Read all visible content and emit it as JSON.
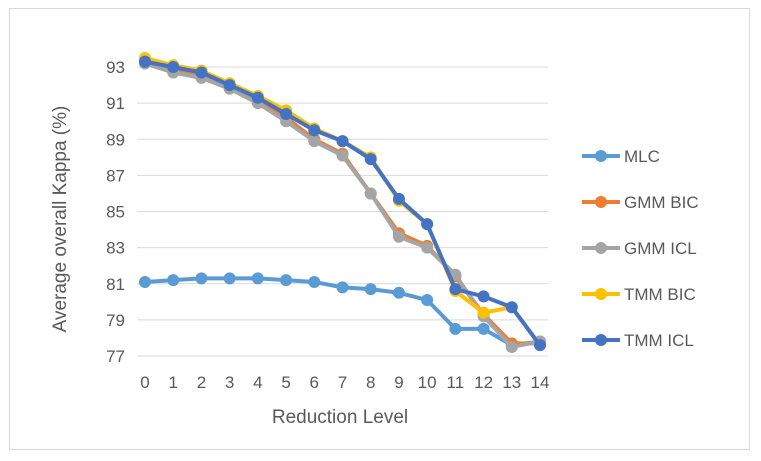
{
  "chart_data": {
    "type": "line",
    "title": "",
    "xlabel": "Reduction Level",
    "ylabel": "Average overall Kappa (%)",
    "x": [
      0,
      1,
      2,
      3,
      4,
      5,
      6,
      7,
      8,
      9,
      10,
      11,
      12,
      13,
      14
    ],
    "ylim": [
      77,
      94
    ],
    "yticks": [
      77,
      79,
      81,
      83,
      85,
      87,
      89,
      91,
      93
    ],
    "grid": "horizontal",
    "legend_position": "right",
    "series": [
      {
        "name": "MLC",
        "color": "#5b9bd5",
        "values": [
          81.1,
          81.2,
          81.3,
          81.3,
          81.3,
          81.2,
          81.1,
          80.8,
          80.7,
          80.5,
          80.1,
          78.5,
          78.5,
          77.6,
          77.8
        ]
      },
      {
        "name": "GMM BIC",
        "color": "#ed7d31",
        "values": [
          93.3,
          92.8,
          92.5,
          92.0,
          91.2,
          90.2,
          89.0,
          88.2,
          86.0,
          83.8,
          83.1,
          81.4,
          79.3,
          77.7,
          77.7
        ]
      },
      {
        "name": "GMM ICL",
        "color": "#a5a5a5",
        "values": [
          93.2,
          92.7,
          92.4,
          91.8,
          91.0,
          90.0,
          88.9,
          88.1,
          86.0,
          83.6,
          83.0,
          81.5,
          79.2,
          77.5,
          77.8
        ]
      },
      {
        "name": "TMM BIC",
        "color": "#ffc000",
        "values": [
          93.5,
          93.1,
          92.8,
          92.1,
          91.4,
          90.6,
          89.6,
          88.9,
          88.0,
          85.6,
          84.3,
          80.6,
          79.4,
          79.7,
          77.6
        ]
      },
      {
        "name": "TMM ICL",
        "color": "#4472c4",
        "values": [
          93.3,
          93.0,
          92.7,
          92.0,
          91.3,
          90.4,
          89.5,
          88.9,
          87.9,
          85.7,
          84.3,
          80.7,
          80.3,
          79.7,
          77.6
        ]
      }
    ]
  }
}
